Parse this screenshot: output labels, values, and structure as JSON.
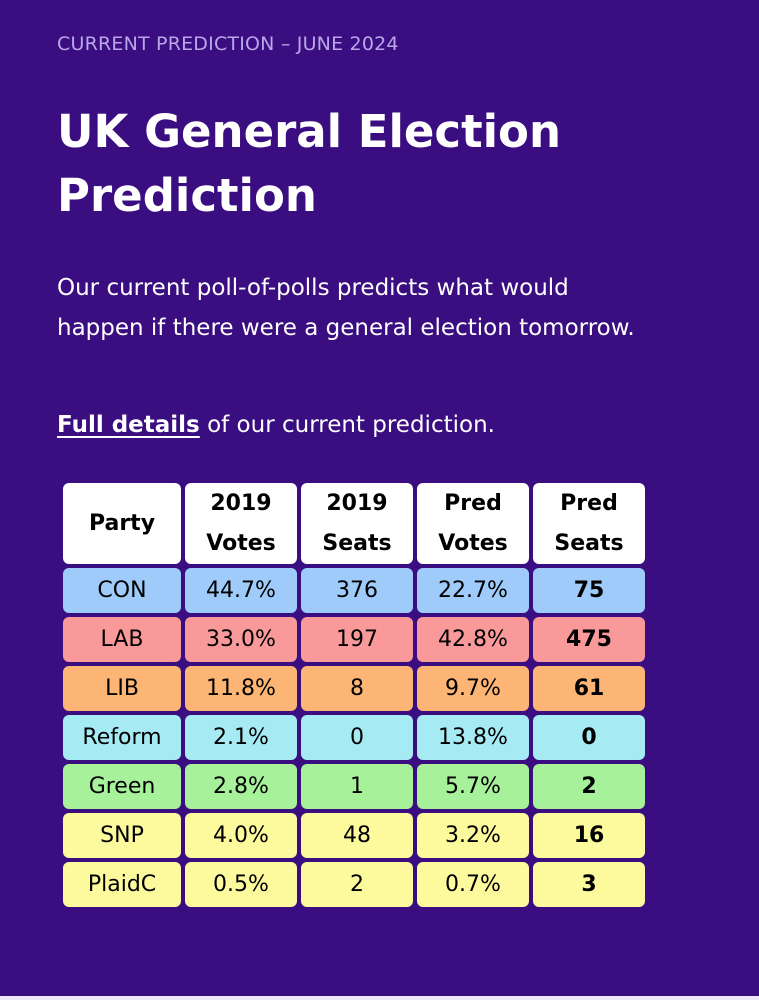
{
  "header": {
    "eyebrow": "CURRENT PREDICTION – JUNE 2024",
    "title": "UK General Election Prediction"
  },
  "intro": {
    "text": "Our current poll-of-polls predicts what would happen if there were a general election tomorrow.",
    "link_text": "Full details",
    "after_link": " of our current prediction."
  },
  "table": {
    "headers": [
      [
        "Party"
      ],
      [
        "2019",
        "Votes"
      ],
      [
        "2019",
        "Seats"
      ],
      [
        "Pred",
        "Votes"
      ],
      [
        "Pred",
        "Seats"
      ]
    ],
    "rows": [
      {
        "party": "CON",
        "votes2019": "44.7%",
        "seats2019": "376",
        "predVotes": "22.7%",
        "predSeats": "75",
        "color": "#9ecbfa"
      },
      {
        "party": "LAB",
        "votes2019": "33.0%",
        "seats2019": "197",
        "predVotes": "42.8%",
        "predSeats": "475",
        "color": "#f9999a"
      },
      {
        "party": "LIB",
        "votes2019": "11.8%",
        "seats2019": "8",
        "predVotes": "9.7%",
        "predSeats": "61",
        "color": "#fcb574"
      },
      {
        "party": "Reform",
        "votes2019": "2.1%",
        "seats2019": "0",
        "predVotes": "13.8%",
        "predSeats": "0",
        "color": "#a6eaf4"
      },
      {
        "party": "Green",
        "votes2019": "2.8%",
        "seats2019": "1",
        "predVotes": "5.7%",
        "predSeats": "2",
        "color": "#a6f19a"
      },
      {
        "party": "SNP",
        "votes2019": "4.0%",
        "seats2019": "48",
        "predVotes": "3.2%",
        "predSeats": "16",
        "color": "#fdfa9e"
      },
      {
        "party": "PlaidC",
        "votes2019": "0.5%",
        "seats2019": "2",
        "predVotes": "0.7%",
        "predSeats": "3",
        "color": "#fdfa9e"
      }
    ]
  },
  "colors": {
    "background": "#3a0d80",
    "eyebrow": "#b9a7e8"
  }
}
